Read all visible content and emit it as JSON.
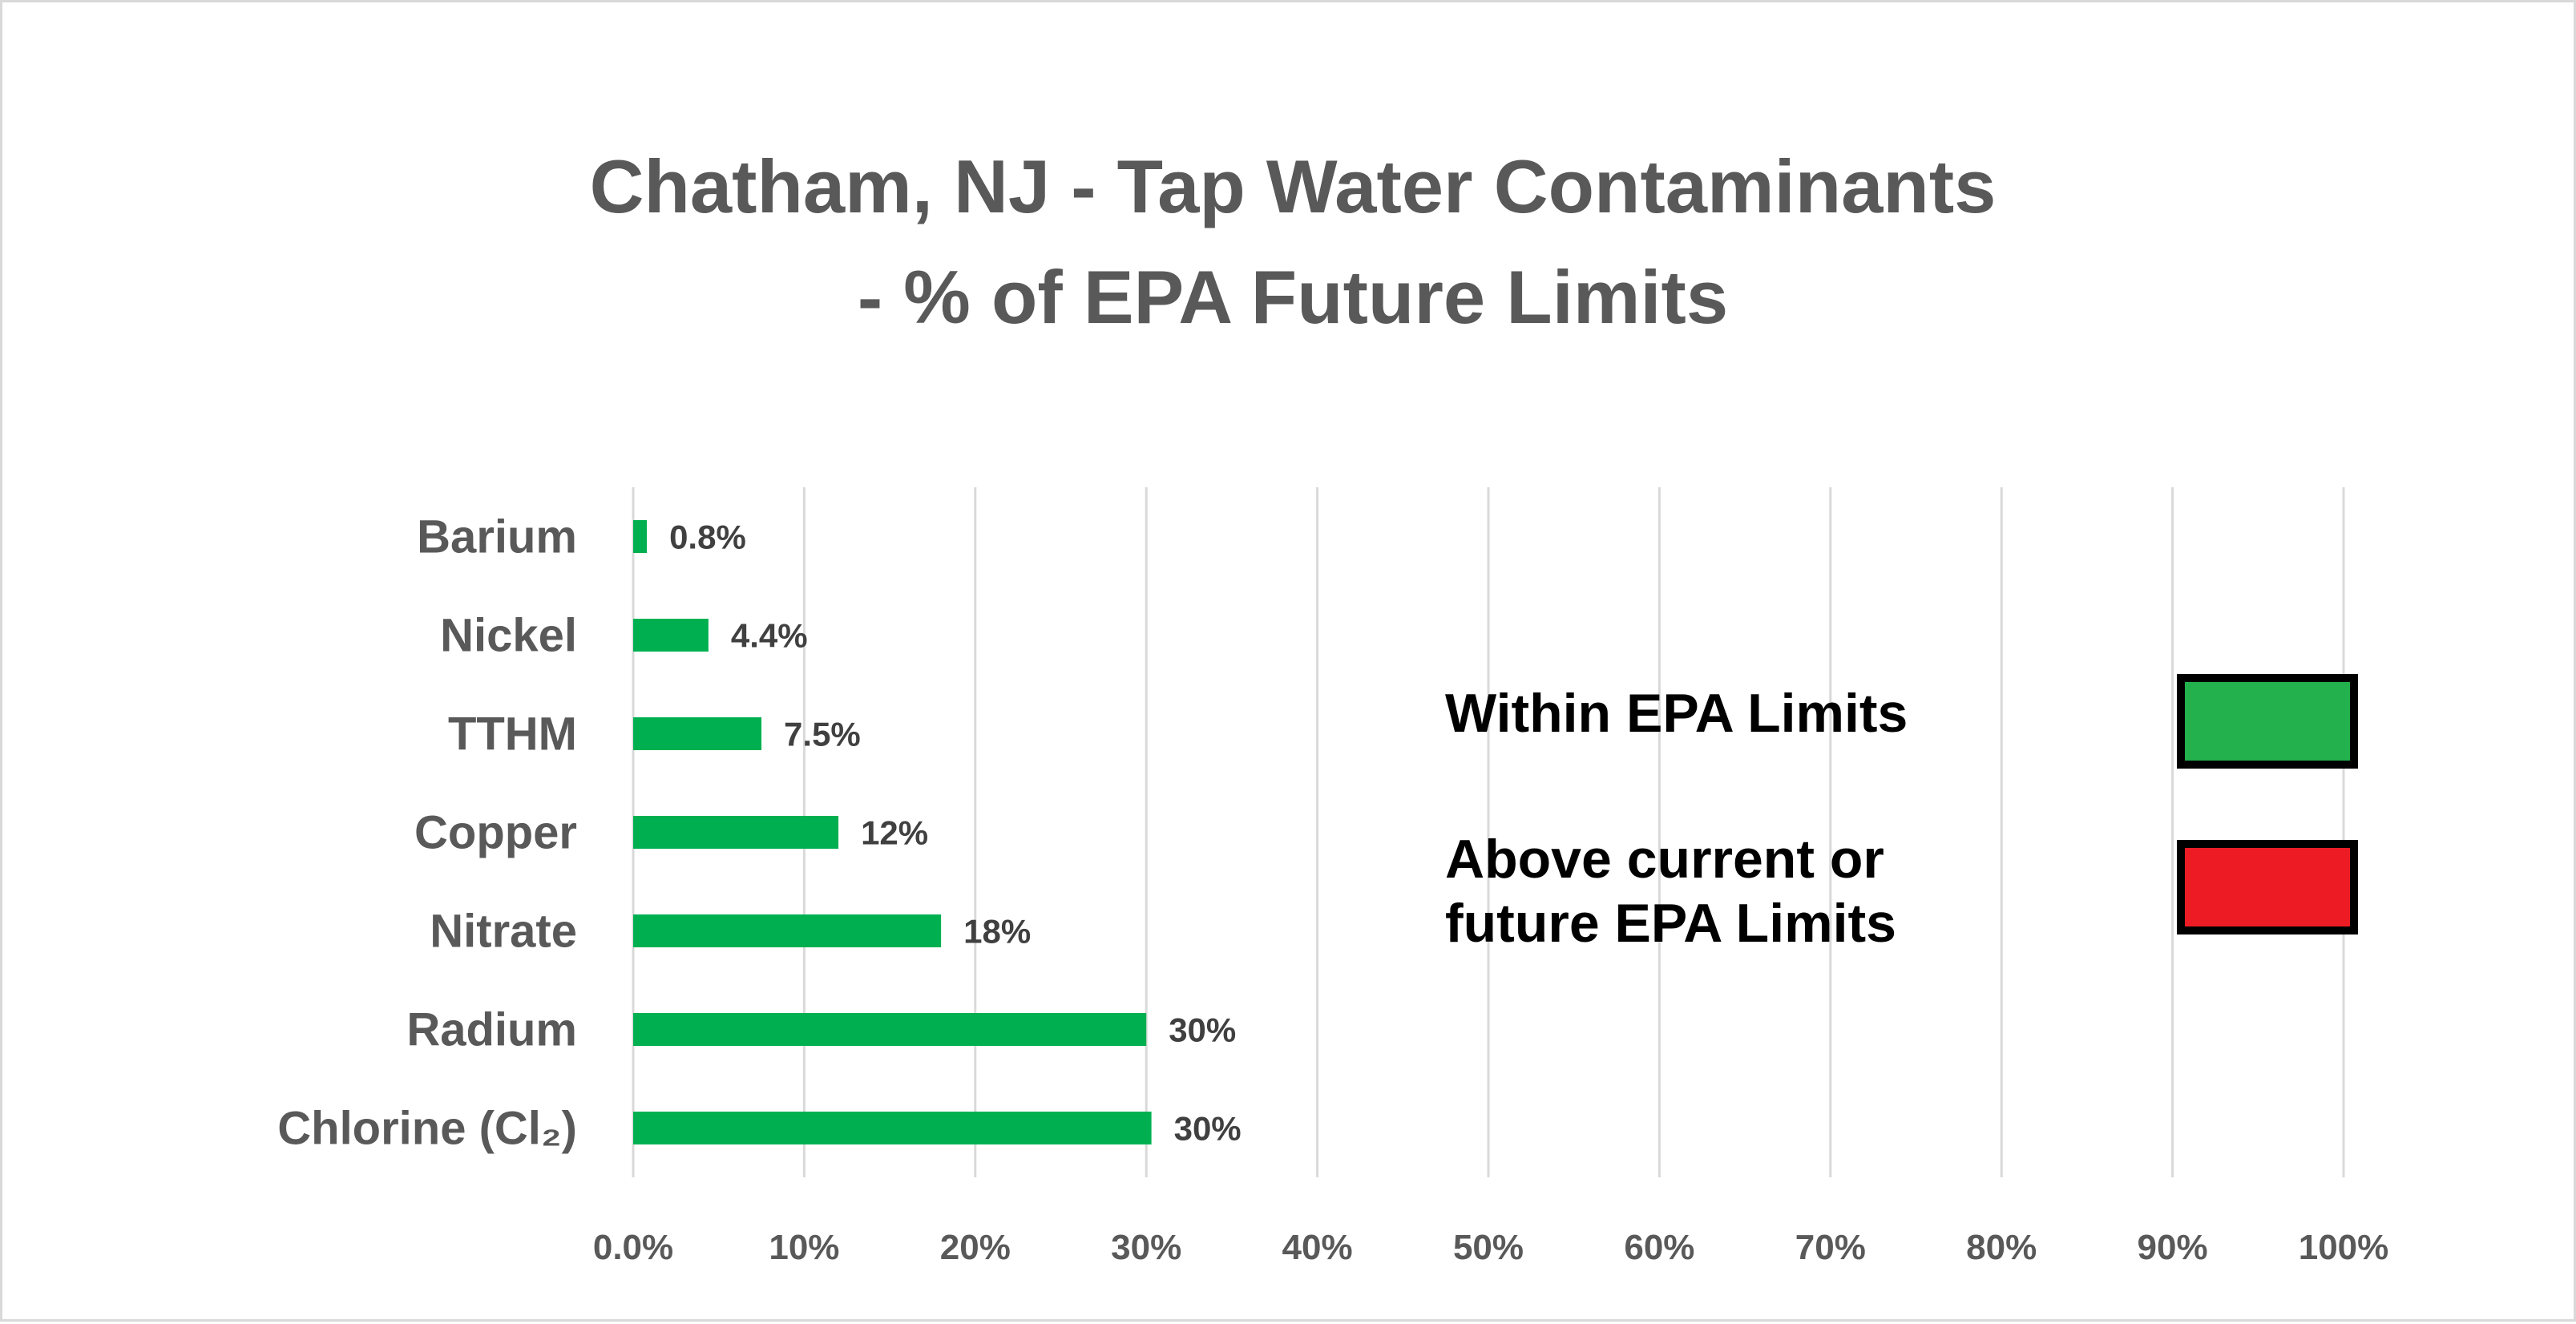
{
  "chart_data": {
    "type": "bar",
    "orientation": "horizontal",
    "title_lines": [
      "Chatham, NJ - Tap Water Contaminants",
      "- % of EPA Future Limits"
    ],
    "categories": [
      "Barium",
      "Nickel",
      "TTHM",
      "Copper",
      "Nitrate",
      "Radium",
      "Chlorine (Cl₂)"
    ],
    "values": [
      0.8,
      4.4,
      7.5,
      12,
      18,
      30,
      30.3
    ],
    "data_labels": [
      "0.8%",
      "4.4%",
      "7.5%",
      "12%",
      "18%",
      "30%",
      "30%"
    ],
    "xlim": [
      0,
      100
    ],
    "xticks": [
      0,
      10,
      20,
      30,
      40,
      50,
      60,
      70,
      80,
      90,
      100
    ],
    "xtick_labels": [
      "0.0%",
      "10%",
      "20%",
      "30%",
      "40%",
      "50%",
      "60%",
      "70%",
      "80%",
      "90%",
      "100%"
    ],
    "grid": "vertical",
    "bar_color": "#00B050",
    "legend": {
      "placement": "right",
      "items": [
        {
          "lines": [
            "Within EPA Limits"
          ],
          "color": "#22B14C"
        },
        {
          "lines": [
            "Above current or",
            "future EPA Limits"
          ],
          "color": "#ED1C24"
        }
      ]
    }
  }
}
